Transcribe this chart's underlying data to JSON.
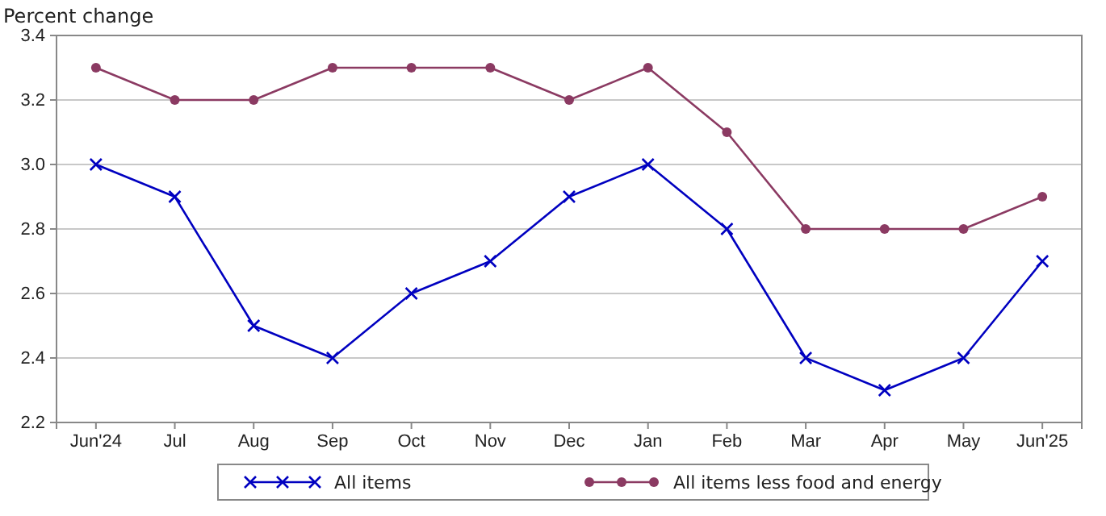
{
  "chart_data": {
    "type": "line",
    "ylabel": "Percent change",
    "categories": [
      "Jun'24",
      "Jul",
      "Aug",
      "Sep",
      "Oct",
      "Nov",
      "Dec",
      "Jan",
      "Feb",
      "Mar",
      "Apr",
      "May",
      "Jun'25"
    ],
    "series": [
      {
        "name": "All items",
        "color": "#0000c0",
        "marker": "cross",
        "values": [
          3.0,
          2.9,
          2.5,
          2.4,
          2.6,
          2.7,
          2.9,
          3.0,
          2.8,
          2.4,
          2.3,
          2.4,
          2.7
        ]
      },
      {
        "name": "All items less food and energy",
        "color": "#8b3a62",
        "marker": "circle",
        "values": [
          3.3,
          3.2,
          3.2,
          3.3,
          3.3,
          3.3,
          3.2,
          3.3,
          3.1,
          2.8,
          2.8,
          2.8,
          2.9
        ]
      }
    ],
    "ylim": [
      2.2,
      3.4
    ],
    "yticks": [
      {
        "value": 2.2,
        "label": "2.2"
      },
      {
        "value": 2.4,
        "label": "2.4"
      },
      {
        "value": 2.6,
        "label": "2.6"
      },
      {
        "value": 2.8,
        "label": "2.8"
      },
      {
        "value": 3.0,
        "label": "3.0"
      },
      {
        "value": 3.2,
        "label": "3.2"
      },
      {
        "value": 3.4,
        "label": "3.4"
      }
    ],
    "grid": "y",
    "legend": "bottom",
    "line_style": "solid"
  }
}
